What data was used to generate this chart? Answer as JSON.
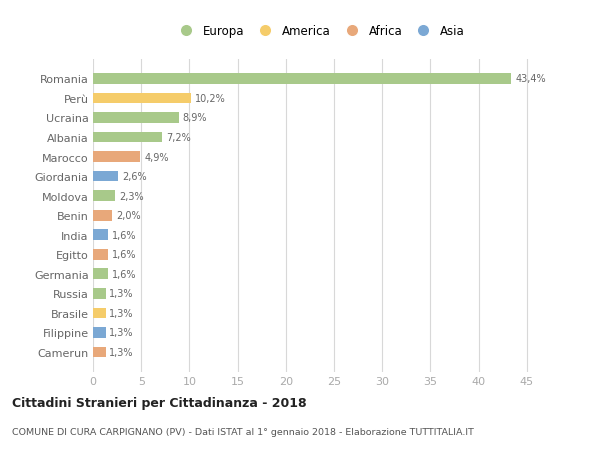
{
  "categories": [
    "Romania",
    "Perù",
    "Ucraina",
    "Albania",
    "Marocco",
    "Giordania",
    "Moldova",
    "Benin",
    "India",
    "Egitto",
    "Germania",
    "Russia",
    "Brasile",
    "Filippine",
    "Camerun"
  ],
  "values": [
    43.4,
    10.2,
    8.9,
    7.2,
    4.9,
    2.6,
    2.3,
    2.0,
    1.6,
    1.6,
    1.6,
    1.3,
    1.3,
    1.3,
    1.3
  ],
  "labels": [
    "43,4%",
    "10,2%",
    "8,9%",
    "7,2%",
    "4,9%",
    "2,6%",
    "2,3%",
    "2,0%",
    "1,6%",
    "1,6%",
    "1,6%",
    "1,3%",
    "1,3%",
    "1,3%",
    "1,3%"
  ],
  "continents": [
    "Europa",
    "America",
    "Europa",
    "Europa",
    "Africa",
    "Asia",
    "Europa",
    "Africa",
    "Asia",
    "Africa",
    "Europa",
    "Europa",
    "America",
    "Asia",
    "Africa"
  ],
  "colors": {
    "Europa": "#a8c98a",
    "America": "#f5cc6a",
    "Africa": "#e8a87a",
    "Asia": "#7ba8d4"
  },
  "legend_order": [
    "Europa",
    "America",
    "Africa",
    "Asia"
  ],
  "title": "Cittadini Stranieri per Cittadinanza - 2018",
  "subtitle": "COMUNE DI CURA CARPIGNANO (PV) - Dati ISTAT al 1° gennaio 2018 - Elaborazione TUTTITALIA.IT",
  "xlim": [
    0,
    47
  ],
  "xticks": [
    0,
    5,
    10,
    15,
    20,
    25,
    30,
    35,
    40,
    45
  ],
  "bg_color": "#ffffff",
  "grid_color": "#d8d8d8",
  "bar_height": 0.55
}
